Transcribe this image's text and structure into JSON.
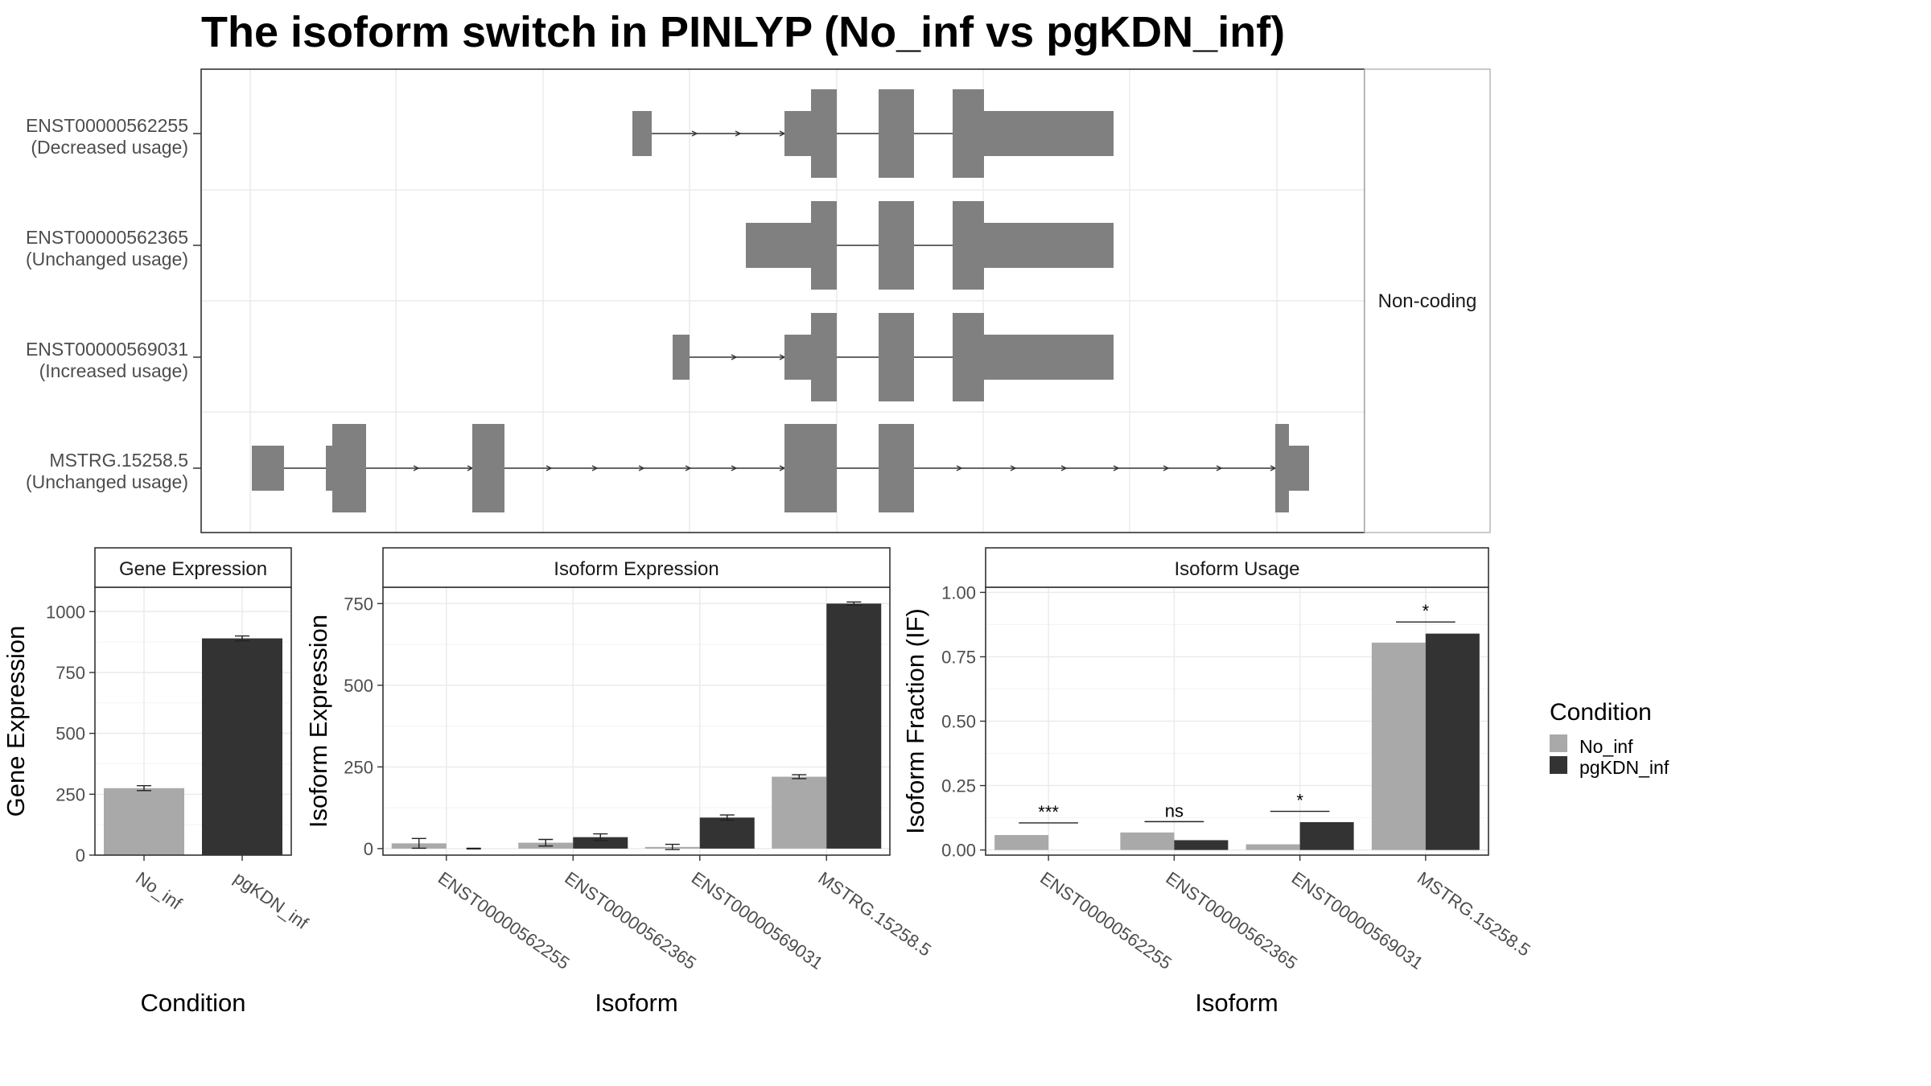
{
  "title": "The isoform switch in PINLYP (No_inf vs pgKDN_inf)",
  "colors": {
    "exon": "#808080",
    "no_inf": "#a9a9a9",
    "pgkdn_inf": "#333333",
    "intron": "#333333"
  },
  "tracks": {
    "facet_label": "Non-coding",
    "isoforms": [
      {
        "id": "ENST00000562255",
        "usage": "(Decreased usage)"
      },
      {
        "id": "ENST00000562365",
        "usage": "(Unchanged usage)"
      },
      {
        "id": "ENST00000569031",
        "usage": "(Increased usage)"
      },
      {
        "id": "MSTRG.15258.5",
        "usage": "(Unchanged usage)"
      }
    ]
  },
  "legend": {
    "title": "Condition",
    "items": [
      "No_inf",
      "pgKDN_inf"
    ]
  },
  "chart_data": [
    {
      "type": "bar",
      "title": "Gene Expression",
      "xlabel": "Condition",
      "ylabel": "Gene Expression",
      "categories": [
        "No_inf",
        "pgKDN_inf"
      ],
      "values": [
        275,
        890
      ],
      "errors": [
        10,
        10
      ],
      "ylim": [
        0,
        1100
      ],
      "yticks": [
        0,
        250,
        500,
        750,
        1000
      ]
    },
    {
      "type": "bar",
      "title": "Isoform Expression",
      "xlabel": "Isoform",
      "ylabel": "Isoform Expression",
      "categories": [
        "ENST00000562255",
        "ENST00000562365",
        "ENST00000569031",
        "MSTRG.15258.5"
      ],
      "series": [
        {
          "name": "No_inf",
          "values": [
            16,
            18,
            5,
            220
          ],
          "errors": [
            15,
            10,
            8,
            6
          ]
        },
        {
          "name": "pgKDN_inf",
          "values": [
            0,
            35,
            95,
            750
          ],
          "errors": [
            1,
            10,
            8,
            5
          ]
        }
      ],
      "ylim": [
        -20,
        800
      ],
      "yticks": [
        0,
        250,
        500,
        750
      ]
    },
    {
      "type": "bar",
      "title": "Isoform Usage",
      "xlabel": "Isoform",
      "ylabel": "Isoform Fraction (IF)",
      "categories": [
        "ENST00000562255",
        "ENST00000562365",
        "ENST00000569031",
        "MSTRG.15258.5"
      ],
      "series": [
        {
          "name": "No_inf",
          "values": [
            0.058,
            0.068,
            0.022,
            0.805
          ]
        },
        {
          "name": "pgKDN_inf",
          "values": [
            0,
            0.038,
            0.108,
            0.84
          ]
        }
      ],
      "significance": [
        "***",
        "ns",
        "*",
        "*"
      ],
      "sig_y": [
        0.105,
        0.11,
        0.15,
        0.885
      ],
      "ylim": [
        -0.02,
        1.02
      ],
      "yticks": [
        0,
        0.25,
        0.5,
        0.75,
        1.0
      ],
      "ytick_labels": [
        "0.00",
        "0.25",
        "0.50",
        "0.75",
        "1.00"
      ]
    }
  ]
}
